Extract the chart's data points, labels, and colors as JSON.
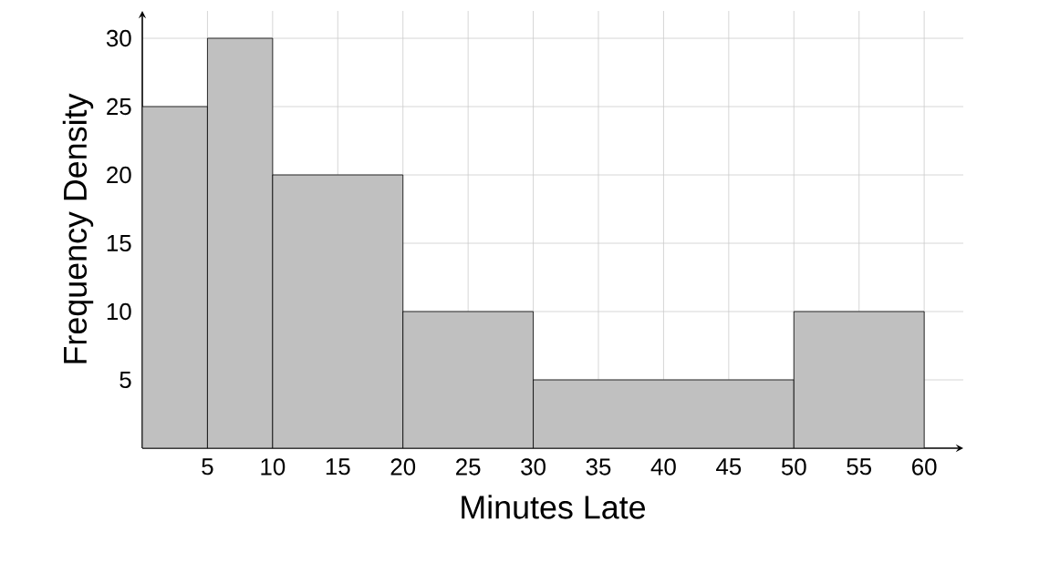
{
  "chart_data": {
    "type": "histogram",
    "xlabel": "Minutes Late",
    "ylabel": "Frequency Density",
    "bins": [
      0,
      5,
      10,
      20,
      30,
      50,
      60
    ],
    "values": [
      25,
      30,
      20,
      10,
      5,
      10
    ],
    "color": "#c0c0c0",
    "xlim": [
      0,
      63
    ],
    "ylim": [
      0,
      32
    ],
    "xticks": [
      5,
      10,
      15,
      20,
      25,
      30,
      35,
      40,
      45,
      50,
      55,
      60
    ],
    "yticks": [
      5,
      10,
      15,
      20,
      25,
      30
    ],
    "grid": true
  }
}
